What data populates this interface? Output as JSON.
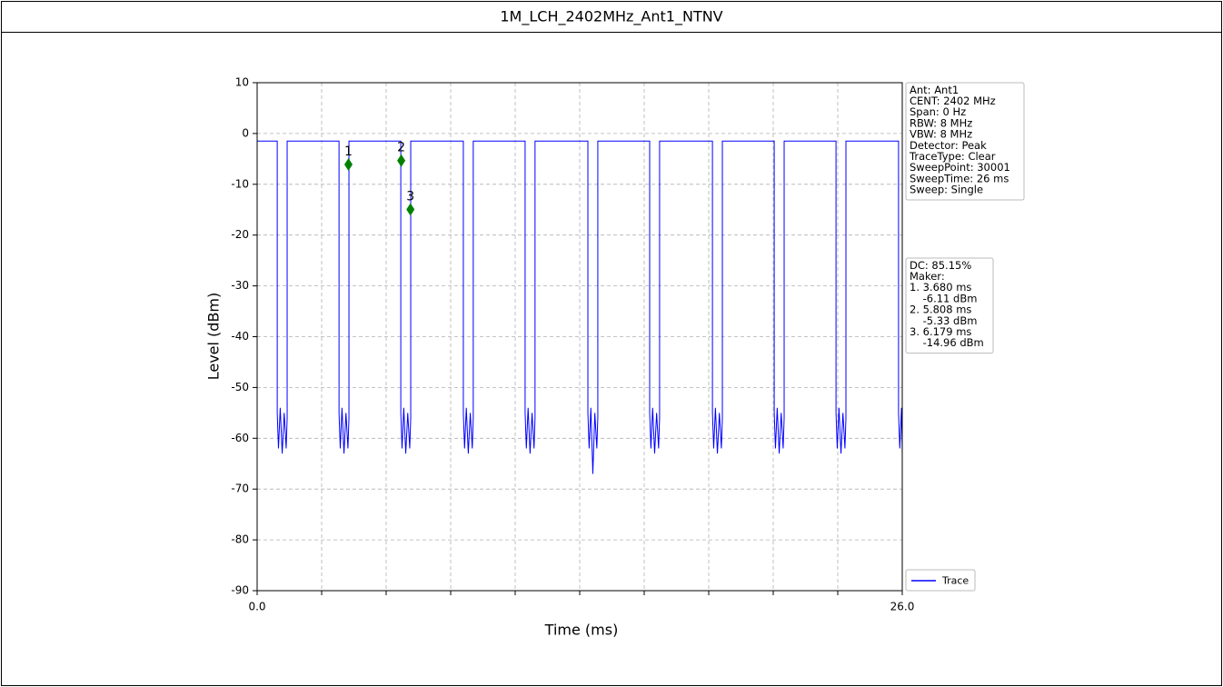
{
  "chart_data": {
    "type": "line",
    "title": "1M_LCH_2402MHz_Ant1_NTNV",
    "xlabel": "Time (ms)",
    "ylabel": "Level (dBm)",
    "xlim": [
      0,
      26
    ],
    "ylim": [
      -90,
      10
    ],
    "xticks": [
      {
        "value": 0,
        "label": "0.0"
      },
      {
        "value": 2.6,
        "label": null
      },
      {
        "value": 5.2,
        "label": null
      },
      {
        "value": 7.8,
        "label": null
      },
      {
        "value": 10.4,
        "label": null
      },
      {
        "value": 13,
        "label": null
      },
      {
        "value": 15.6,
        "label": null
      },
      {
        "value": 18.2,
        "label": null
      },
      {
        "value": 20.8,
        "label": null
      },
      {
        "value": 23.4,
        "label": null
      },
      {
        "value": 26,
        "label": "26.0"
      }
    ],
    "yticks": [
      10,
      0,
      -10,
      -20,
      -30,
      -40,
      -50,
      -60,
      -70,
      -80,
      -90
    ],
    "grid": true,
    "legend": "lower right",
    "series": [
      {
        "name": "Trace",
        "color": "#0000ff",
        "x": [
          0,
          0.81,
          0.81,
          0.86,
          0.93,
          1.01,
          1.09,
          1.17,
          1.21,
          1.21,
          3.3,
          3.3,
          3.35,
          3.42,
          3.5,
          3.58,
          3.66,
          3.7,
          3.7,
          5.79,
          5.79,
          5.84,
          5.91,
          5.99,
          6.07,
          6.15,
          6.19,
          6.19,
          8.31,
          8.31,
          8.36,
          8.43,
          8.51,
          8.59,
          8.67,
          8.71,
          8.71,
          10.8,
          10.8,
          10.85,
          10.92,
          11.0,
          11.08,
          11.16,
          11.2,
          11.2,
          13.33,
          13.33,
          13.38,
          13.45,
          13.53,
          13.61,
          13.69,
          13.73,
          13.73,
          15.82,
          15.82,
          15.87,
          15.94,
          16.02,
          16.1,
          16.18,
          16.22,
          16.22,
          18.35,
          18.35,
          18.4,
          18.47,
          18.55,
          18.63,
          18.71,
          18.75,
          18.75,
          20.84,
          20.84,
          20.89,
          20.96,
          21.04,
          21.12,
          21.2,
          21.24,
          21.24,
          23.33,
          23.33,
          23.38,
          23.45,
          23.53,
          23.61,
          23.69,
          23.73,
          23.73,
          25.85,
          25.85,
          25.9,
          25.97,
          26.0
        ],
        "values": [
          -1.5,
          -1.5,
          -55,
          -62,
          -54,
          -63,
          -55,
          -62,
          -56,
          -1.5,
          -1.5,
          -55,
          -62,
          -54,
          -63,
          -55,
          -62,
          -56,
          -1.5,
          -1.5,
          -55,
          -62,
          -54,
          -63,
          -55,
          -62,
          -56,
          -1.5,
          -1.5,
          -55,
          -62,
          -54,
          -63,
          -55,
          -62,
          -56,
          -1.5,
          -1.5,
          -55,
          -62,
          -54,
          -63,
          -55,
          -62,
          -56,
          -1.5,
          -1.5,
          -55,
          -62,
          -54,
          -67,
          -55,
          -62,
          -56,
          -1.5,
          -1.5,
          -55,
          -62,
          -54,
          -63,
          -55,
          -62,
          -56,
          -1.5,
          -1.5,
          -55,
          -62,
          -54,
          -63,
          -55,
          -62,
          -56,
          -1.5,
          -1.5,
          -55,
          -62,
          -54,
          -63,
          -55,
          -62,
          -56,
          -1.5,
          -1.5,
          -55,
          -62,
          -54,
          -63,
          -55,
          -62,
          -56,
          -1.5,
          -1.5,
          -55,
          -62,
          -54,
          -63
        ]
      }
    ],
    "markers": {
      "color": "#008000",
      "labels": [
        "1",
        "2",
        "3"
      ],
      "x": [
        3.68,
        5.808,
        6.179
      ],
      "values": [
        -6.11,
        -5.33,
        -14.96
      ]
    },
    "info_lines": [
      "Ant: Ant1",
      "CENT: 2402 MHz",
      "Span: 0 Hz",
      "RBW: 8 MHz",
      "VBW: 8 MHz",
      "Detector: Peak",
      "TraceType: Clear",
      "SweepPoint: 30001",
      "SweepTime: 26 ms",
      "Sweep: Single"
    ],
    "dc_lines": [
      "DC: 85.15%",
      "Maker:",
      "1. 3.680 ms",
      "    -6.11 dBm",
      "2. 5.808 ms",
      "    -5.33 dBm",
      "3. 6.179 ms",
      "    -14.96 dBm"
    ]
  }
}
